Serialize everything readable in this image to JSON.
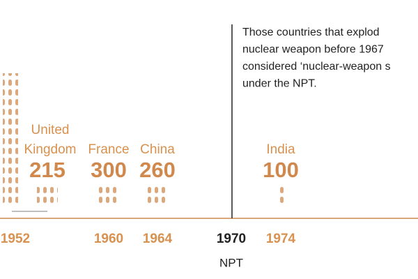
{
  "note": {
    "lines": [
      "Those countries that explod",
      "nuclear weapon before 1967",
      "considered ‘nuclear-weapon s",
      "under the NPT."
    ]
  },
  "countries": [
    {
      "name_lines": [
        "United",
        "Kingdom"
      ],
      "warheads": "215",
      "year": "1952"
    },
    {
      "name_lines": [
        "France"
      ],
      "warheads": "300",
      "year": "1960"
    },
    {
      "name_lines": [
        "China"
      ],
      "warheads": "260",
      "year": "1964"
    },
    {
      "name_lines": [
        "India"
      ],
      "warheads": "100",
      "year": "1974"
    }
  ],
  "npt": {
    "year": "1970",
    "label": "NPT"
  }
}
